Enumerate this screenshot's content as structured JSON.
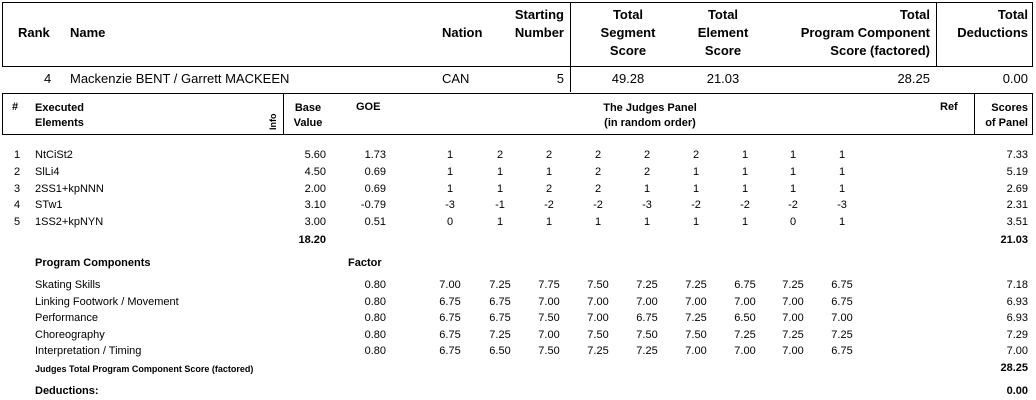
{
  "header": {
    "rank": "Rank",
    "name": "Name",
    "nation": "Nation",
    "starting_number": [
      "Starting",
      "Number"
    ],
    "total_segment_score": [
      "Total",
      "Segment",
      "Score"
    ],
    "total_element_score": [
      "Total",
      "Element",
      "Score"
    ],
    "total_pcs": [
      "Total",
      "Program  Component",
      "Score (factored)"
    ],
    "total_deductions": [
      "Total",
      "Deductions"
    ]
  },
  "skater": {
    "rank": "4",
    "name": "Mackenzie BENT / Garrett MACKEEN",
    "nation": "CAN",
    "starting_number": "5",
    "segment_score": "49.28",
    "element_score": "21.03",
    "pcs": "28.25",
    "deductions": "0.00"
  },
  "elements_header": {
    "num": "#",
    "executed": [
      "Executed",
      "Elements"
    ],
    "info": "Info",
    "base_value": [
      "Base",
      "Value"
    ],
    "goe": "GOE",
    "judges_panel": [
      "The Judges Panel",
      "(in random order)"
    ],
    "ref": "Ref",
    "scores": [
      "Scores",
      "of Panel"
    ]
  },
  "elements": [
    {
      "num": "1",
      "name": "NtCiSt2",
      "base": "5.60",
      "goe": "1.73",
      "judges": [
        "1",
        "2",
        "2",
        "2",
        "2",
        "2",
        "1",
        "1",
        "1"
      ],
      "score": "7.33"
    },
    {
      "num": "2",
      "name": "SlLi4",
      "base": "4.50",
      "goe": "0.69",
      "judges": [
        "1",
        "1",
        "1",
        "2",
        "2",
        "1",
        "1",
        "1",
        "1"
      ],
      "score": "5.19"
    },
    {
      "num": "3",
      "name": "2SS1+kpNNN",
      "base": "2.00",
      "goe": "0.69",
      "judges": [
        "1",
        "1",
        "2",
        "2",
        "1",
        "1",
        "1",
        "1",
        "1"
      ],
      "score": "2.69"
    },
    {
      "num": "4",
      "name": "STw1",
      "base": "3.10",
      "goe": "-0.79",
      "judges": [
        "-3",
        "-1",
        "-2",
        "-2",
        "-3",
        "-2",
        "-2",
        "-2",
        "-3"
      ],
      "score": "2.31"
    },
    {
      "num": "5",
      "name": "1SS2+kpNYN",
      "base": "3.00",
      "goe": "0.51",
      "judges": [
        "0",
        "1",
        "1",
        "1",
        "1",
        "1",
        "1",
        "0",
        "1"
      ],
      "score": "3.51"
    }
  ],
  "elements_total_base": "18.20",
  "elements_total_score": "21.03",
  "program_components": {
    "title": "Program Components",
    "factor_label": "Factor",
    "rows": [
      {
        "name": "Skating Skills",
        "factor": "0.80",
        "judges": [
          "7.00",
          "7.25",
          "7.75",
          "7.50",
          "7.25",
          "7.25",
          "6.75",
          "7.25",
          "6.75"
        ],
        "score": "7.18"
      },
      {
        "name": "Linking Footwork / Movement",
        "factor": "0.80",
        "judges": [
          "6.75",
          "6.75",
          "7.00",
          "7.00",
          "7.00",
          "7.00",
          "7.00",
          "7.00",
          "6.75"
        ],
        "score": "6.93"
      },
      {
        "name": "Performance",
        "factor": "0.80",
        "judges": [
          "6.75",
          "6.75",
          "7.50",
          "7.00",
          "6.75",
          "7.25",
          "6.50",
          "7.00",
          "7.00"
        ],
        "score": "6.93"
      },
      {
        "name": "Choreography",
        "factor": "0.80",
        "judges": [
          "6.75",
          "7.25",
          "7.00",
          "7.50",
          "7.50",
          "7.50",
          "7.25",
          "7.25",
          "7.25"
        ],
        "score": "7.29"
      },
      {
        "name": "Interpretation / Timing",
        "factor": "0.80",
        "judges": [
          "6.75",
          "6.50",
          "7.50",
          "7.25",
          "7.25",
          "7.00",
          "7.00",
          "7.00",
          "6.75"
        ],
        "score": "7.00"
      }
    ],
    "total_label": "Judges Total Program Component Score (factored)",
    "total": "28.25"
  },
  "deductions": {
    "label": "Deductions:",
    "value": "0.00"
  }
}
